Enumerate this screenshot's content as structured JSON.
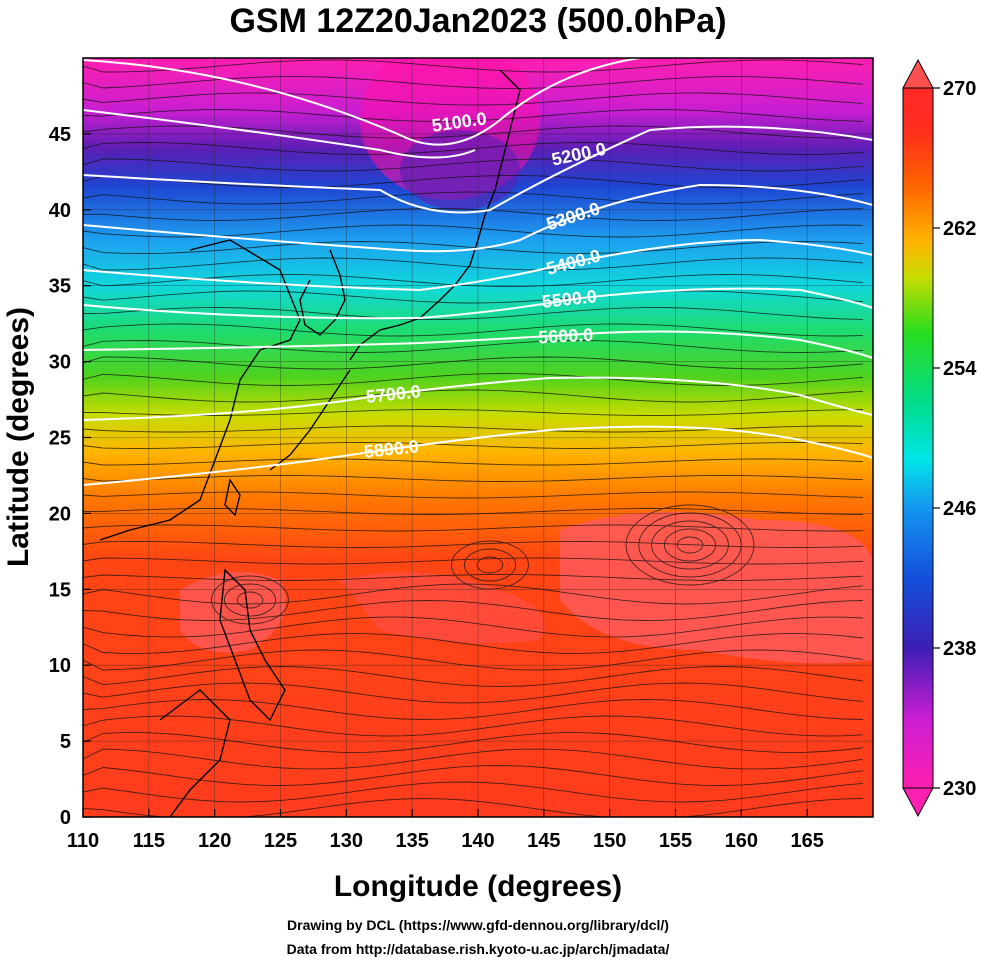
{
  "title": "GSM 12Z20Jan2023 (500.0hPa)",
  "x_axis": {
    "label": "Longitude (degrees)",
    "ticks": [
      "110",
      "115",
      "120",
      "125",
      "130",
      "135",
      "140",
      "145",
      "150",
      "155",
      "160",
      "165"
    ]
  },
  "y_axis": {
    "label": "Latitude  (degrees)",
    "ticks": [
      "0",
      "5",
      "10",
      "15",
      "20",
      "25",
      "30",
      "35",
      "40",
      "45"
    ]
  },
  "colorbar": {
    "ticks": [
      "270",
      "262",
      "254",
      "246",
      "238",
      "230"
    ],
    "colors": [
      "#ff3c8c",
      "#ff1493",
      "#d21ed2",
      "#8c1ed2",
      "#3c1eb4",
      "#1450dc",
      "#1496f0",
      "#00d2f0",
      "#00e6a0",
      "#1edc1e",
      "#8cdc00",
      "#e6dc00",
      "#ffaa00",
      "#ff6400",
      "#ff3c00",
      "#ff2828",
      "#ff5050"
    ]
  },
  "contours": [
    {
      "label": "5100.0"
    },
    {
      "label": "5200.0"
    },
    {
      "label": "5300.0"
    },
    {
      "label": "5400.0"
    },
    {
      "label": "5500.0"
    },
    {
      "label": "5600.0"
    },
    {
      "label": "5700.0"
    },
    {
      "label": "5800.0"
    }
  ],
  "credits": {
    "line1": "Drawing by DCL (https://www.gfd-dennou.org/library/dcl/)",
    "line2": "Data from http://database.rish.kyoto-u.ac.jp/arch/jmadata/"
  },
  "chart_data": {
    "type": "heatmap",
    "field": "temperature",
    "contour_field": "geopotential height",
    "level": "500.0hPa",
    "xlim": [
      110,
      170
    ],
    "ylim": [
      0,
      50
    ],
    "color_range": [
      230,
      270
    ],
    "contour_levels": [
      5100,
      5200,
      5300,
      5400,
      5500,
      5600,
      5700,
      5800
    ]
  }
}
